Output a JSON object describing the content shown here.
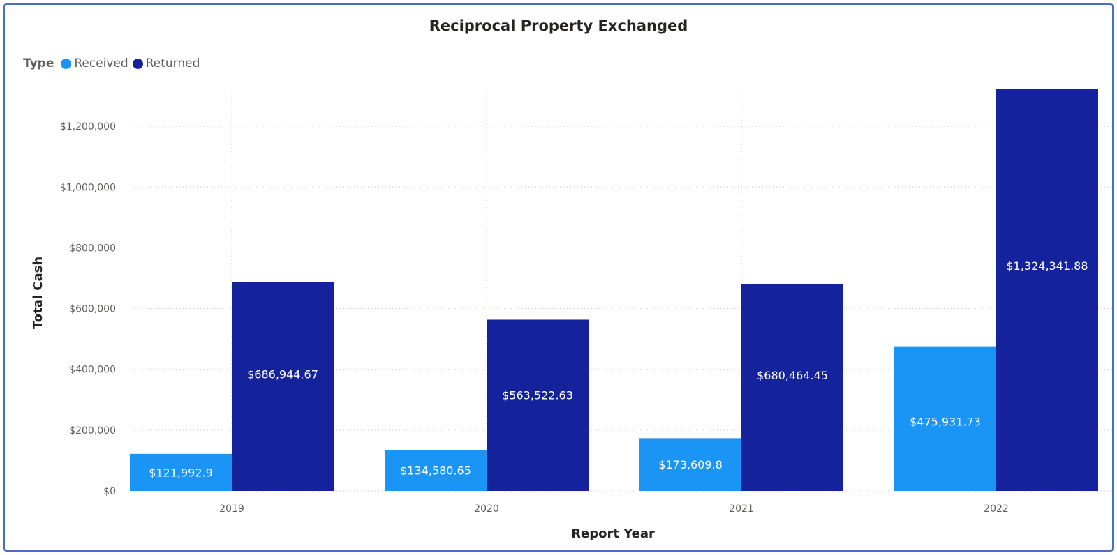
{
  "chart_data": {
    "type": "bar",
    "title": "Reciprocal Property Exchanged",
    "xlabel": "Report Year",
    "ylabel": "Total Cash",
    "categories": [
      "2019",
      "2020",
      "2021",
      "2022"
    ],
    "legend_title": "Type",
    "legend_position": "top-left",
    "series": [
      {
        "name": "Received",
        "color": "#1a94f5",
        "values": [
          121992.9,
          134580.65,
          173609.8,
          475931.73
        ],
        "labels": [
          "$121,992.9",
          "$134,580.65",
          "$173,609.8",
          "$475,931.73"
        ]
      },
      {
        "name": "Returned",
        "color": "#14229b",
        "values": [
          686944.67,
          563522.63,
          680464.45,
          1324341.88
        ],
        "labels": [
          "$686,944.67",
          "$563,522.63",
          "$680,464.45",
          "$1,324,341.88"
        ]
      }
    ],
    "ylim": [
      0,
      1324341.88
    ],
    "y_ticks": [
      0,
      200000,
      400000,
      600000,
      800000,
      1000000,
      1200000
    ],
    "y_tick_labels": [
      "$0",
      "$200,000",
      "$400,000",
      "$600,000",
      "$800,000",
      "$1,000,000",
      "$1,200,000"
    ],
    "grid": true,
    "grid_style": "dotted"
  }
}
